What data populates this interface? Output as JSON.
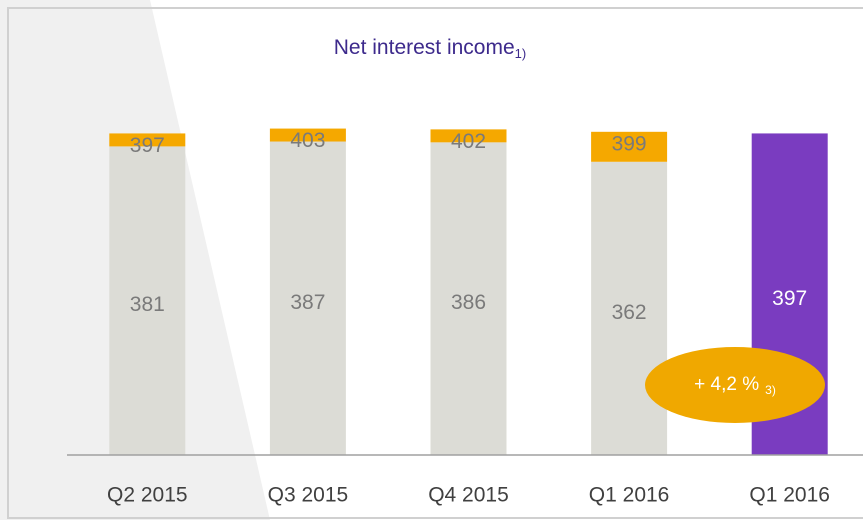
{
  "chart_data": {
    "type": "stacked_bar",
    "title": "Net interest income",
    "title_note": "1)",
    "categories": [
      "Q2 2015",
      "Q3 2015",
      "Q4 2015",
      "Q1 2016",
      "Q1 2016"
    ],
    "series": [
      {
        "color": "#dcdcd6",
        "values": [
          381,
          387,
          386,
          362,
          null
        ]
      },
      {
        "color": "#f5a800",
        "values": [
          16,
          16,
          16,
          37,
          null
        ]
      },
      {
        "color": "#7a3cc0",
        "values": [
          null,
          null,
          null,
          null,
          397
        ]
      }
    ],
    "totals": [
      397,
      403,
      402,
      399,
      null
    ],
    "annotation": {
      "text": "+ 4,2 %",
      "note": "3)",
      "color": "#f0a800"
    },
    "ylim": [
      0,
      400
    ]
  }
}
